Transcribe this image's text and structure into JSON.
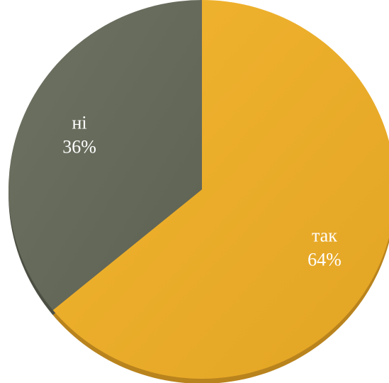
{
  "chart_data": {
    "type": "pie",
    "categories": [
      "так",
      "ні"
    ],
    "values": [
      64,
      36
    ],
    "value_labels": [
      "64%",
      "36%"
    ],
    "colors": [
      "#EDAE2D",
      "#676A5B"
    ],
    "start_angle_deg": 0,
    "direction": "clockwise",
    "style": "3d-tilted"
  }
}
